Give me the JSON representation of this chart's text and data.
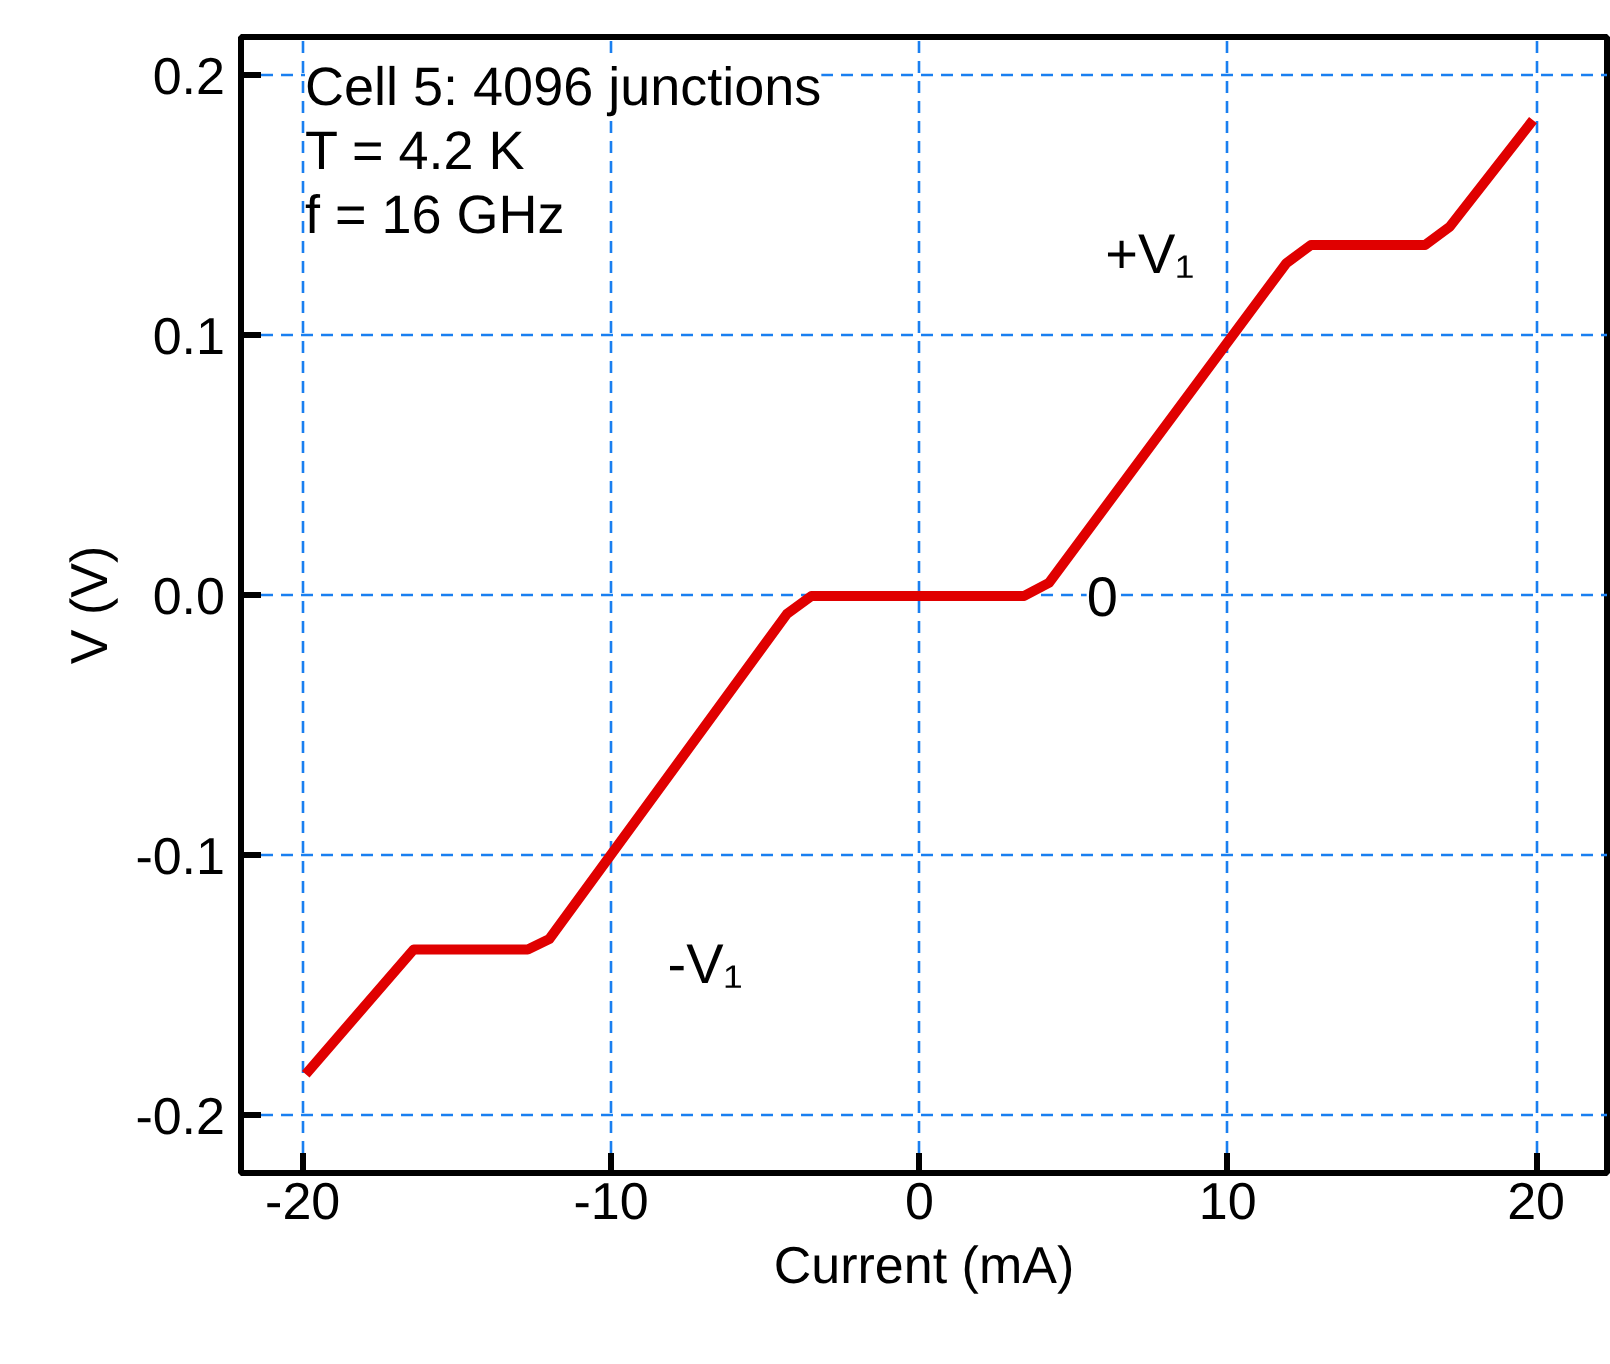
{
  "chart_data": {
    "type": "line",
    "xlabel": "Current (mA)",
    "ylabel": "V (V)",
    "x": [
      -19.9,
      -16.4,
      -12.7,
      -12.0,
      -4.3,
      -3.5,
      3.4,
      4.2,
      11.9,
      12.7,
      16.4,
      17.2,
      19.9
    ],
    "series": [
      {
        "color": "#e00000",
        "values": [
          -0.184,
          -0.136,
          -0.136,
          -0.132,
          -0.007,
          0,
          0,
          0.005,
          0.128,
          0.135,
          0.135,
          0.142,
          0.183
        ]
      }
    ],
    "xlim": [
      -22,
      22.3
    ],
    "ylim": [
      -0.222,
      0.215
    ],
    "xticks": [
      -20,
      -10,
      0,
      10,
      20
    ],
    "yticks": [
      -0.2,
      -0.1,
      {
        "value": 0,
        "label": "0.0"
      },
      0.1,
      0.2
    ],
    "grid": true,
    "line_style": "solid",
    "marker": "none",
    "annotations": [
      "Cell 5: 4096 junctions",
      "T = 4.2 K",
      "f = 16 GHz",
      {
        "text": "+V₁",
        "x": 10,
        "y": 0.1
      },
      {
        "text": "0",
        "x": 3.4,
        "y": 0
      },
      {
        "text": "-V₁",
        "x": -10,
        "y": -0.1
      }
    ]
  }
}
